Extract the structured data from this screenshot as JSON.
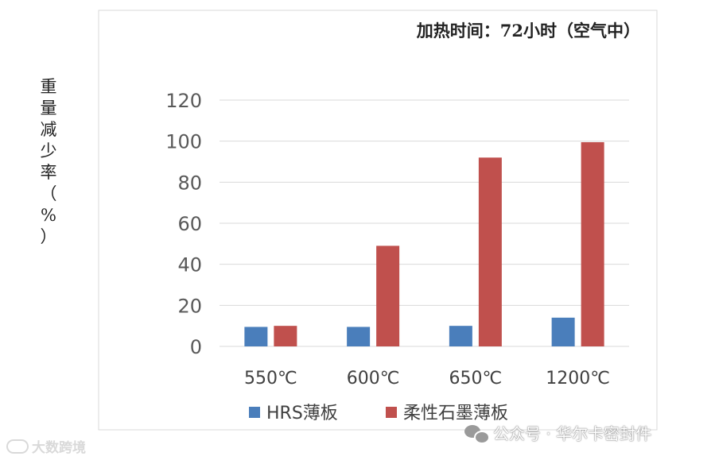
{
  "chart_data": {
    "type": "bar",
    "title": "加热时间：72小时（空气中）",
    "ylabel": "重量减少率（%）",
    "categories": [
      "550℃",
      "600℃",
      "650℃",
      "1200℃"
    ],
    "series": [
      {
        "name": "HRS薄板",
        "values": [
          9.5,
          9.5,
          10,
          14
        ],
        "color": "#4a7ebb"
      },
      {
        "name": "柔性石墨薄板",
        "values": [
          10,
          49,
          92,
          99.5
        ],
        "color": "#c0504d"
      }
    ],
    "ylim": [
      0,
      120
    ],
    "yticks": [
      0,
      20,
      40,
      60,
      80,
      100,
      120
    ],
    "grid": true,
    "legend_position": "bottom"
  },
  "watermarks": {
    "left": "大数跨境",
    "right": "公众号 · 华尔卡密封件"
  }
}
